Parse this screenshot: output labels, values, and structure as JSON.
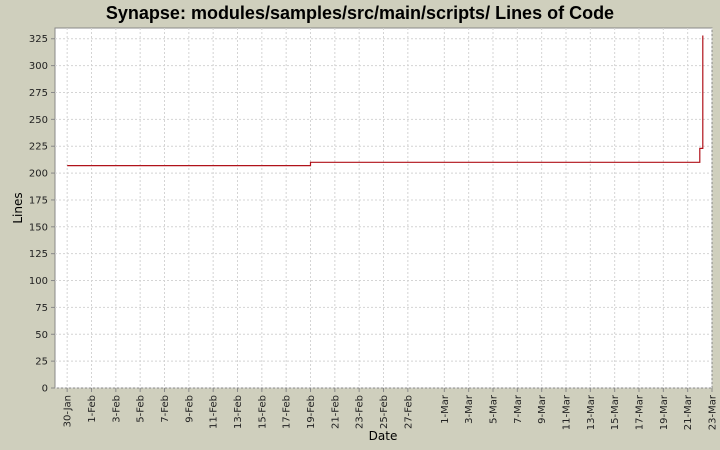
{
  "chart_data": {
    "type": "line",
    "title": "Synapse: modules/samples/src/main/scripts/ Lines of Code",
    "xlabel": "Date",
    "ylabel": "Lines",
    "x_tick_labels": [
      "30-Jan",
      "1-Feb",
      "3-Feb",
      "5-Feb",
      "7-Feb",
      "9-Feb",
      "11-Feb",
      "13-Feb",
      "15-Feb",
      "17-Feb",
      "19-Feb",
      "21-Feb",
      "23-Feb",
      "25-Feb",
      "27-Feb",
      "1-Mar",
      "3-Mar",
      "5-Mar",
      "7-Mar",
      "9-Mar",
      "11-Mar",
      "13-Mar",
      "15-Mar",
      "17-Mar",
      "19-Mar",
      "21-Mar",
      "23-Mar"
    ],
    "y_ticks": [
      0,
      25,
      50,
      75,
      100,
      125,
      150,
      175,
      200,
      225,
      250,
      275,
      300,
      325
    ],
    "ylim": [
      0,
      335
    ],
    "xlim": [
      "29-Jan",
      "23-Mar"
    ],
    "grid": true,
    "series": [
      {
        "color": "#b0121a",
        "step": true,
        "points": [
          {
            "x": "30-Jan",
            "y": 207
          },
          {
            "x": "19-Feb",
            "y": 207
          },
          {
            "x": "19-Feb",
            "y": 210
          },
          {
            "x": "22-Mar",
            "y": 210
          },
          {
            "x": "22-Mar",
            "y": 223
          },
          {
            "x": "22-Mar",
            "y": 223
          },
          {
            "x": "22-Mar",
            "y": 328
          }
        ]
      }
    ]
  }
}
